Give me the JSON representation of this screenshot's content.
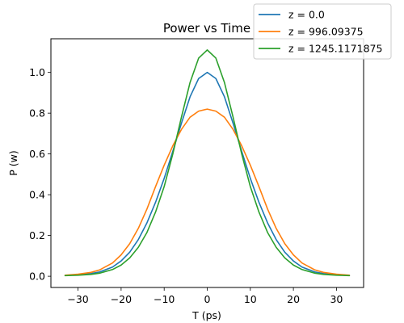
{
  "chart_data": {
    "type": "line",
    "title": "Power vs Time",
    "xlabel": "T (ps)",
    "ylabel": "P (w)",
    "xlim": [
      -36.3,
      36.3
    ],
    "ylim": [
      -0.055,
      1.165
    ],
    "xticks": [
      -30,
      -20,
      -10,
      0,
      10,
      20,
      30
    ],
    "xtick_labels": [
      "−30",
      "−20",
      "−10",
      "0",
      "10",
      "20",
      "30"
    ],
    "yticks": [
      0.0,
      0.2,
      0.4,
      0.6,
      0.8,
      1.0
    ],
    "ytick_labels": [
      "0.0",
      "0.2",
      "0.4",
      "0.6",
      "0.8",
      "1.0"
    ],
    "grid": false,
    "legend_position": "top-right",
    "series": [
      {
        "name": "z = 0.0",
        "color": "#1f77b4",
        "x": [
          -33,
          -30,
          -27,
          -25,
          -22,
          -20,
          -18,
          -16,
          -14,
          -12,
          -10,
          -8,
          -6,
          -4,
          -2,
          0,
          2,
          4,
          6,
          8,
          10,
          12,
          14,
          16,
          18,
          20,
          22,
          25,
          27,
          30,
          33
        ],
        "y": [
          0.004,
          0.007,
          0.013,
          0.021,
          0.045,
          0.075,
          0.118,
          0.18,
          0.262,
          0.363,
          0.48,
          0.613,
          0.75,
          0.88,
          0.97,
          1.0,
          0.97,
          0.88,
          0.75,
          0.613,
          0.48,
          0.363,
          0.262,
          0.18,
          0.118,
          0.075,
          0.045,
          0.021,
          0.013,
          0.007,
          0.004
        ]
      },
      {
        "name": "z = 996.09375",
        "color": "#ff7f0e",
        "x": [
          -33,
          -30,
          -27,
          -25,
          -22,
          -20,
          -18,
          -16,
          -14,
          -12,
          -10,
          -8,
          -6,
          -4,
          -2,
          0,
          2,
          4,
          6,
          8,
          10,
          12,
          14,
          16,
          18,
          20,
          22,
          25,
          27,
          30,
          33
        ],
        "y": [
          0.005,
          0.01,
          0.019,
          0.031,
          0.065,
          0.105,
          0.16,
          0.235,
          0.33,
          0.44,
          0.545,
          0.64,
          0.72,
          0.78,
          0.81,
          0.82,
          0.81,
          0.78,
          0.72,
          0.64,
          0.545,
          0.44,
          0.33,
          0.235,
          0.16,
          0.105,
          0.065,
          0.031,
          0.019,
          0.01,
          0.005
        ]
      },
      {
        "name": "z = 1245.1171875",
        "color": "#2ca02c",
        "x": [
          -33,
          -30,
          -27,
          -25,
          -22,
          -20,
          -18,
          -16,
          -14,
          -12,
          -10,
          -8,
          -6,
          -4,
          -2,
          0,
          2,
          4,
          6,
          8,
          10,
          12,
          14,
          16,
          18,
          20,
          22,
          25,
          27,
          30,
          33
        ],
        "y": [
          0.003,
          0.005,
          0.009,
          0.015,
          0.033,
          0.055,
          0.09,
          0.142,
          0.215,
          0.315,
          0.44,
          0.6,
          0.78,
          0.95,
          1.07,
          1.11,
          1.07,
          0.95,
          0.78,
          0.6,
          0.44,
          0.315,
          0.215,
          0.142,
          0.09,
          0.055,
          0.033,
          0.015,
          0.009,
          0.005,
          0.003
        ]
      }
    ]
  }
}
